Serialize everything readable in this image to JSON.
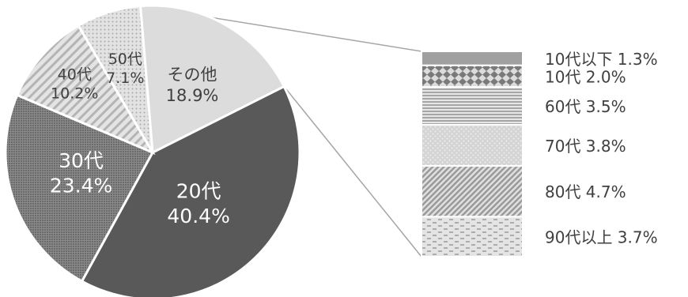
{
  "chart_data": {
    "type": "pie",
    "subtype": "pie-of-pie (bar of pie)",
    "slices": [
      {
        "label": "20代",
        "value": 40.4,
        "display": "40.4%",
        "color": "#595959",
        "pattern": "solid-dark",
        "text_color": "#ffffff"
      },
      {
        "label": "30代",
        "value": 23.4,
        "display": "23.4%",
        "color": "#6f6f6f",
        "pattern": "grid-plaid",
        "text_color": "#ffffff"
      },
      {
        "label": "40代",
        "value": 10.2,
        "display": "10.2%",
        "color": "#d2d2d2",
        "pattern": "diagonal-stripes",
        "text_color": "#404040"
      },
      {
        "label": "50代",
        "value": 7.1,
        "display": "7.1%",
        "color": "#d2d2d2",
        "pattern": "dots",
        "text_color": "#404040"
      },
      {
        "label": "その他",
        "value": 18.9,
        "display": "18.9%",
        "color": "#dcdcdc",
        "pattern": "solid-light",
        "text_color": "#404040"
      }
    ],
    "breakdown": [
      {
        "label": "10代以下",
        "value": 1.3,
        "display": "1.3%",
        "pattern": "solid-gray",
        "text": "10代以下 1.3%"
      },
      {
        "label": "10代",
        "value": 2.0,
        "display": "2.0%",
        "pattern": "diamonds",
        "text": "10代 2.0%"
      },
      {
        "label": "60代",
        "value": 3.5,
        "display": "3.5%",
        "pattern": "horizontal-stripes",
        "text": "60代 3.5%"
      },
      {
        "label": "70代",
        "value": 3.8,
        "display": "3.8%",
        "pattern": "light-dots",
        "text": "70代 3.8%"
      },
      {
        "label": "80代",
        "value": 4.7,
        "display": "4.7%",
        "pattern": "dense-diagonal",
        "text": "80代 4.7%"
      },
      {
        "label": "90代以上",
        "value": 3.7,
        "display": "3.7%",
        "pattern": "dashes",
        "text": "90代以上 3.7%"
      }
    ],
    "legend_text_color": "#404040"
  }
}
